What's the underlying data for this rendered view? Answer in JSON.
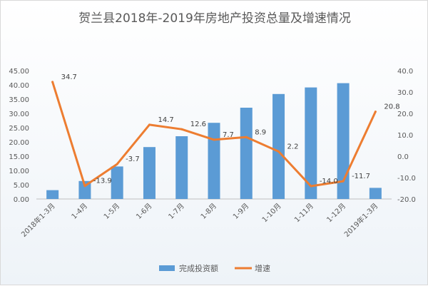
{
  "chart_data": {
    "title": "贺兰县2018年-2019年房地产投资总量及增速情况",
    "categories": [
      "2018年1-3月",
      "1-4月",
      "1-5月",
      "1-6月",
      "1-7月",
      "1-8月",
      "1-9月",
      "1-10月",
      "1-11月",
      "1-12月",
      "2019年1-3月"
    ],
    "series": [
      {
        "name": "完成投资额",
        "type": "bar",
        "axis": "left",
        "color": "#5b9bd5",
        "values": [
          3.1,
          6.3,
          11.4,
          18.2,
          22.0,
          26.7,
          32.0,
          36.8,
          39.1,
          40.6,
          3.9
        ]
      },
      {
        "name": "增速",
        "type": "line",
        "axis": "right",
        "color": "#ed7d31",
        "values": [
          34.7,
          -13.9,
          -3.7,
          14.7,
          12.6,
          7.7,
          8.9,
          2.2,
          -14.0,
          -11.7,
          20.8
        ]
      }
    ],
    "y_left": {
      "min": 0,
      "max": 45,
      "step": 5,
      "tick_labels": [
        "0.00",
        "5.00",
        "10.00",
        "15.00",
        "20.00",
        "25.00",
        "30.00",
        "35.00",
        "40.00",
        "45.00"
      ]
    },
    "y_right": {
      "min": -20,
      "max": 40,
      "step": 10,
      "tick_labels": [
        "-20.0",
        "-10.0",
        "0.0",
        "10.0",
        "20.0",
        "30.0",
        "40.0"
      ]
    },
    "line_labels": [
      "34.7",
      "-13.9",
      "-3.7",
      "14.7",
      "12.6",
      "7.7",
      "8.9",
      "2.2",
      "-14.0",
      "-11.7",
      "20.8"
    ],
    "legend_position": "bottom",
    "grid": false
  }
}
